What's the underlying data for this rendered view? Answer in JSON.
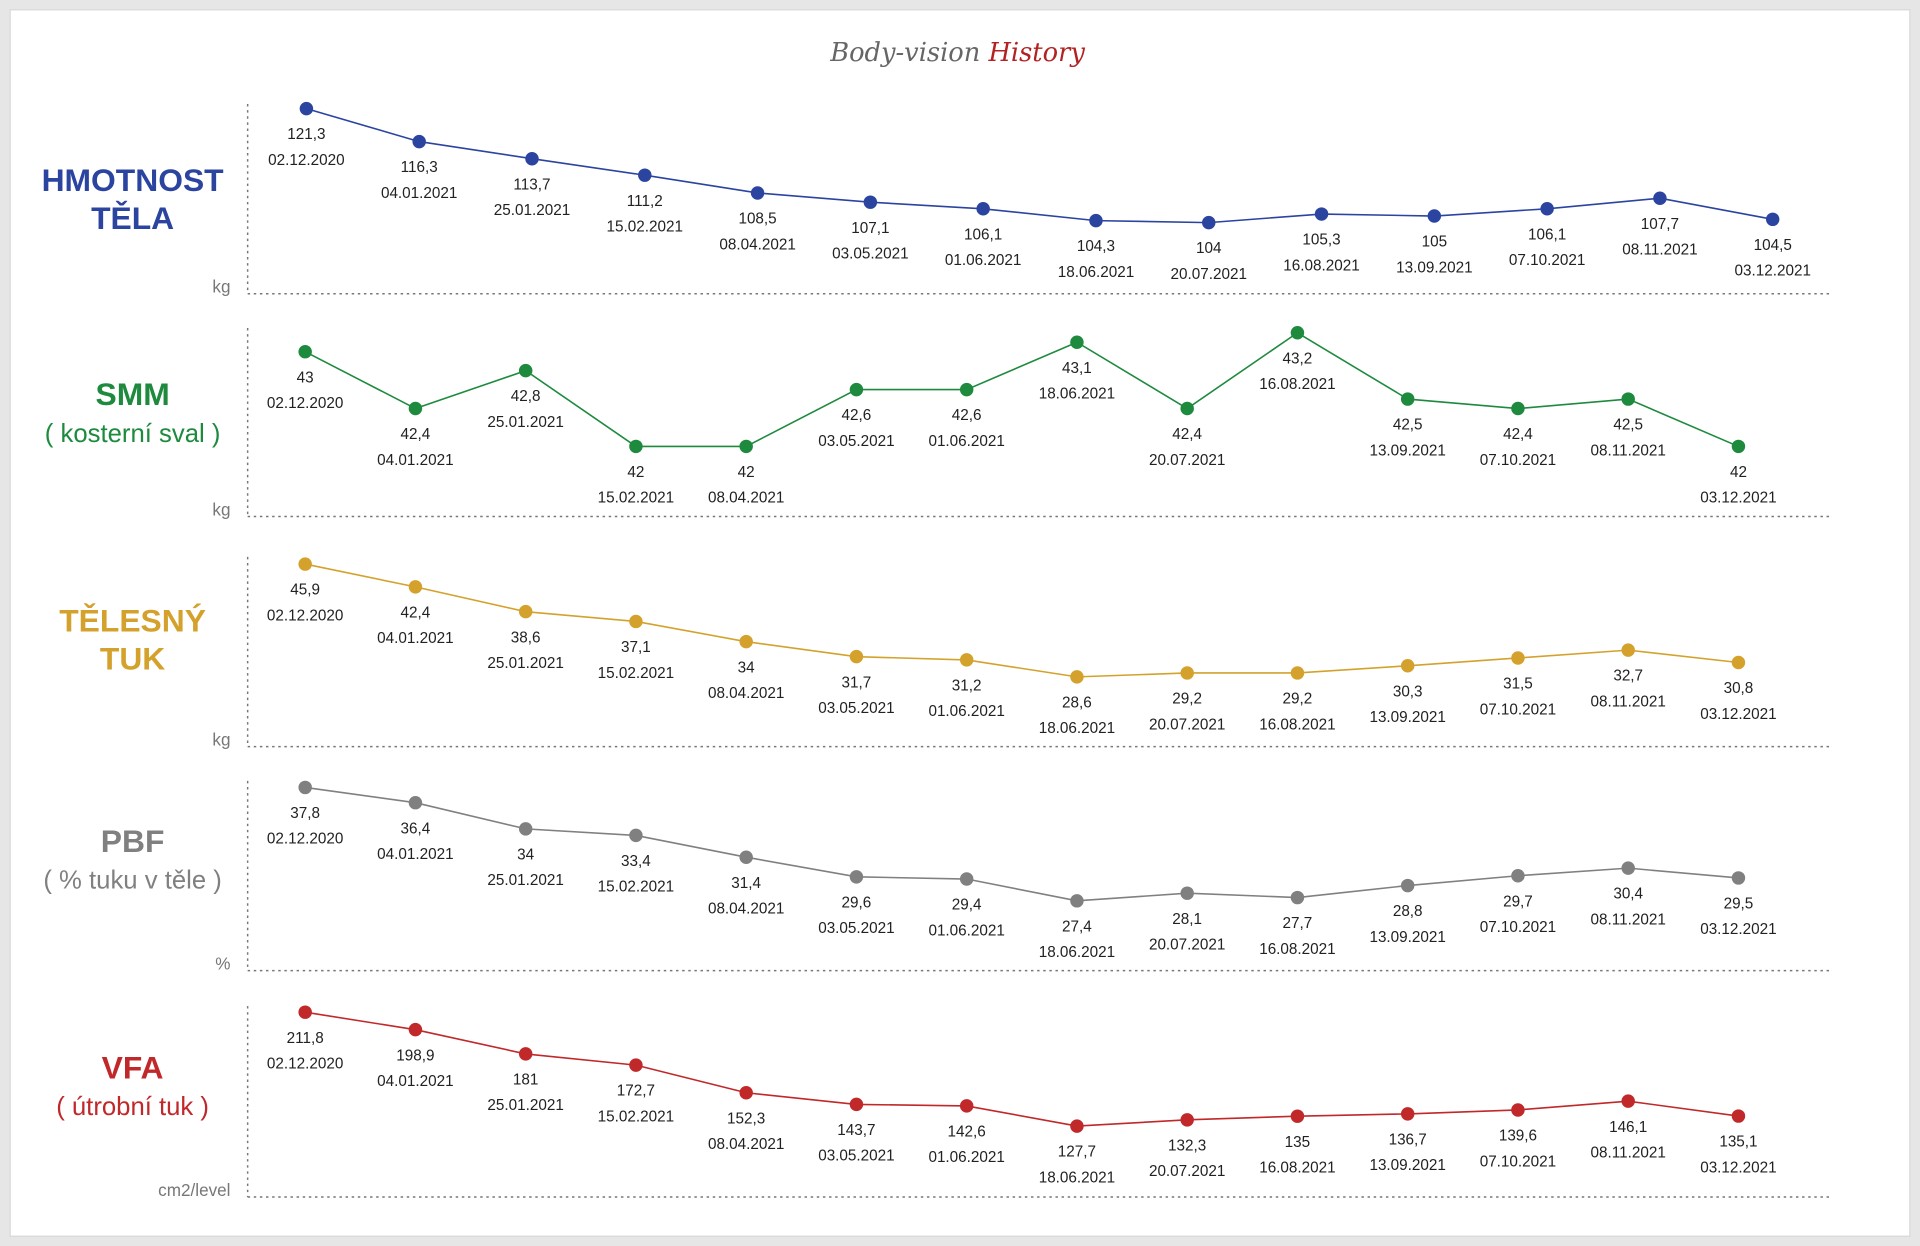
{
  "page_title": {
    "text": "Body-vision",
    "highlight": "History"
  },
  "chart_data": [
    {
      "type": "line",
      "title": [
        "HMOTNOST",
        "TĚLA"
      ],
      "y_label": "kg",
      "color": "#2b44a0",
      "categories": [
        "02.12.2020",
        "04.01.2021",
        "25.01.2021",
        "15.02.2021",
        "08.04.2021",
        "03.05.2021",
        "01.06.2021",
        "18.06.2021",
        "20.07.2021",
        "16.08.2021",
        "13.09.2021",
        "07.10.2021",
        "08.11.2021",
        "03.12.2021"
      ],
      "values": [
        121.3,
        116.3,
        113.7,
        111.2,
        108.5,
        107.1,
        106.1,
        104.3,
        104,
        105.3,
        105,
        106.1,
        107.7,
        104.5
      ],
      "value_labels": [
        "121,3",
        "116,3",
        "113,7",
        "111,2",
        "108,5",
        "107,1",
        "106,1",
        "104,3",
        "104",
        "105,3",
        "105",
        "106,1",
        "107,7",
        "104,5"
      ],
      "ylim": [
        93.2,
        122
      ]
    },
    {
      "type": "line",
      "title": [
        "SMM"
      ],
      "subtitle": "( kosterní sval )",
      "y_label": "kg",
      "color": "#1e8a3e",
      "categories": [
        "02.12.2020",
        "04.01.2021",
        "25.01.2021",
        "15.02.2021",
        "08.04.2021",
        "03.05.2021",
        "01.06.2021",
        "18.06.2021",
        "20.07.2021",
        "16.08.2021",
        "13.09.2021",
        "07.10.2021",
        "08.11.2021",
        "03.12.2021"
      ],
      "values": [
        43,
        42.4,
        42.8,
        42,
        42,
        42.6,
        42.6,
        43.1,
        42.4,
        43.2,
        42.5,
        42.4,
        42.5,
        42
      ],
      "value_labels": [
        "43",
        "42,4",
        "42,8",
        "42",
        "42",
        "42,6",
        "42,6",
        "43,1",
        "42,4",
        "43,2",
        "42,5",
        "42,4",
        "42,5",
        "42"
      ],
      "ylim": [
        41.26,
        43.25
      ]
    },
    {
      "type": "line",
      "title": [
        "TĚLESNÝ",
        "TUK"
      ],
      "y_label": "kg",
      "color": "#d4a22c",
      "categories": [
        "02.12.2020",
        "04.01.2021",
        "25.01.2021",
        "15.02.2021",
        "08.04.2021",
        "03.05.2021",
        "01.06.2021",
        "18.06.2021",
        "20.07.2021",
        "16.08.2021",
        "13.09.2021",
        "07.10.2021",
        "08.11.2021",
        "03.12.2021"
      ],
      "values": [
        45.9,
        42.4,
        38.6,
        37.1,
        34,
        31.7,
        31.2,
        28.6,
        29.2,
        29.2,
        30.3,
        31.5,
        32.7,
        30.8
      ],
      "value_labels": [
        "45,9",
        "42,4",
        "38,6",
        "37,1",
        "34",
        "31,7",
        "31,2",
        "28,6",
        "29,2",
        "29,2",
        "30,3",
        "31,5",
        "32,7",
        "30,8"
      ],
      "ylim": [
        17.9,
        47
      ]
    },
    {
      "type": "line",
      "title": [
        "PBF"
      ],
      "subtitle": "( % tuku v těle )",
      "y_label": "%",
      "color": "#808080",
      "categories": [
        "02.12.2020",
        "04.01.2021",
        "25.01.2021",
        "15.02.2021",
        "08.04.2021",
        "03.05.2021",
        "01.06.2021",
        "18.06.2021",
        "20.07.2021",
        "16.08.2021",
        "13.09.2021",
        "07.10.2021",
        "08.11.2021",
        "03.12.2021"
      ],
      "values": [
        37.8,
        36.4,
        34,
        33.4,
        31.4,
        29.6,
        29.4,
        27.4,
        28.1,
        27.7,
        28.8,
        29.7,
        30.4,
        29.5
      ],
      "value_labels": [
        "37,8",
        "36,4",
        "34",
        "33,4",
        "31,4",
        "29,6",
        "29,4",
        "27,4",
        "28,1",
        "27,7",
        "28,8",
        "29,7",
        "30,4",
        "29,5"
      ],
      "ylim": [
        21,
        38.4
      ]
    },
    {
      "type": "line",
      "title": [
        "VFA"
      ],
      "subtitle": "( útrobní tuk )",
      "y_label": "cm2/level",
      "color": "#c0282a",
      "categories": [
        "02.12.2020",
        "04.01.2021",
        "25.01.2021",
        "15.02.2021",
        "08.04.2021",
        "03.05.2021",
        "01.06.2021",
        "18.06.2021",
        "20.07.2021",
        "16.08.2021",
        "13.09.2021",
        "07.10.2021",
        "08.11.2021",
        "03.12.2021"
      ],
      "values": [
        211.8,
        198.9,
        181,
        172.7,
        152.3,
        143.7,
        142.6,
        127.7,
        132.3,
        135,
        136.7,
        139.6,
        146.1,
        135.1
      ],
      "value_labels": [
        "211,8",
        "198,9",
        "181",
        "172,7",
        "152,3",
        "143,7",
        "142,6",
        "127,7",
        "132,3",
        "135",
        "136,7",
        "139,6",
        "146,1",
        "135,1"
      ],
      "ylim": [
        75.3,
        216.3
      ]
    }
  ]
}
